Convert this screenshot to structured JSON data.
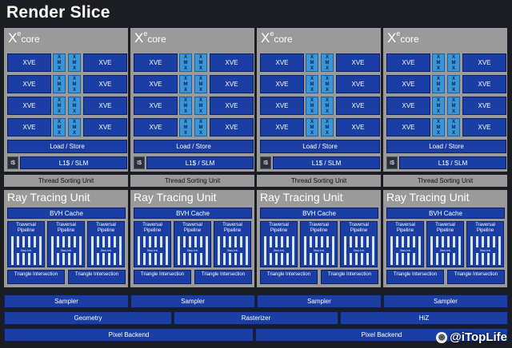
{
  "title": "Render Slice",
  "xecore": {
    "prefix": "X",
    "sup": "e",
    "suffix": "core"
  },
  "xve_label": "XVE",
  "xmx_label": [
    "X",
    "M",
    "X"
  ],
  "load_store": "Load / Store",
  "icache": "I$",
  "l1": "L1$ / SLM",
  "thread_sorting": "Thread Sorting Unit",
  "rtu": {
    "title": "Ray Tracing Unit",
    "bvh_cache": "BVH Cache",
    "pipeline": "Traversal Pipeline",
    "box_int": "Box Int.",
    "triangle": "Triangle Intersection"
  },
  "slice_count": 4,
  "bottom": {
    "sampler": [
      "Sampler",
      "Sampler",
      "Sampler",
      "Sampler"
    ],
    "geometry": "Geometry",
    "rasterizer": "Rasterizer",
    "hiz": "HiZ",
    "pixel_backend": [
      "Pixel Backend",
      "Pixel Backend"
    ]
  },
  "watermark": "@iTopLife",
  "colors": {
    "block_blue": "#1a3ea3",
    "xmx_blue": "#3a95d6",
    "frame_gray": "#9a9a9a",
    "background": "#1c1d22"
  }
}
